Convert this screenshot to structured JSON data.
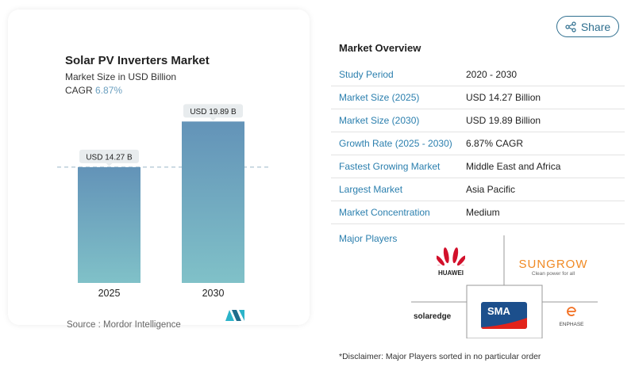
{
  "header": {
    "share_label": "Share"
  },
  "chart_card": {
    "title": "Solar PV Inverters Market",
    "subtitle": "Market Size in USD Billion",
    "cagr_label": "CAGR",
    "cagr_value": "6.87%",
    "source": "Source :  Mordor Intelligence"
  },
  "chart_data": {
    "type": "bar",
    "title": "Solar PV Inverters Market",
    "subtitle": "Market Size in USD Billion",
    "categories": [
      "2025",
      "2030"
    ],
    "values": [
      14.27,
      19.89
    ],
    "data_labels": [
      "USD 14.27 B",
      "USD 19.89 B"
    ],
    "reference_line": 14.27,
    "bar_color_top": "#6393b8",
    "bar_color_bottom": "#80c1c8",
    "grid": false
  },
  "overview": {
    "title": "Market Overview",
    "rows": [
      {
        "label": "Study Period",
        "value": "2020 - 2030"
      },
      {
        "label": "Market Size (2025)",
        "value": "USD 14.27 Billion"
      },
      {
        "label": "Market Size (2030)",
        "value": "USD 19.89 Billion"
      },
      {
        "label": "Growth Rate (2025 - 2030)",
        "value": "6.87% CAGR"
      },
      {
        "label": "Fastest Growing Market",
        "value": "Middle East and Africa"
      },
      {
        "label": "Largest Market",
        "value": "Asia Pacific"
      },
      {
        "label": "Market Concentration",
        "value": "Medium"
      }
    ],
    "major_players_label": "Major Players",
    "players": [
      "HUAWEI",
      "SUNGROW",
      "SMA",
      "solaredge",
      "ENPHASE"
    ],
    "sungrow_tagline": "Clean power for all",
    "disclaimer": "*Disclaimer: Major Players sorted in no particular order"
  },
  "colors": {
    "accent": "#2b7fae",
    "huawei": "#d2102b",
    "sungrow": "#f08a24",
    "sma_blue": "#1c4f8c",
    "sma_red": "#e2231a",
    "enphase": "#f26f21"
  }
}
